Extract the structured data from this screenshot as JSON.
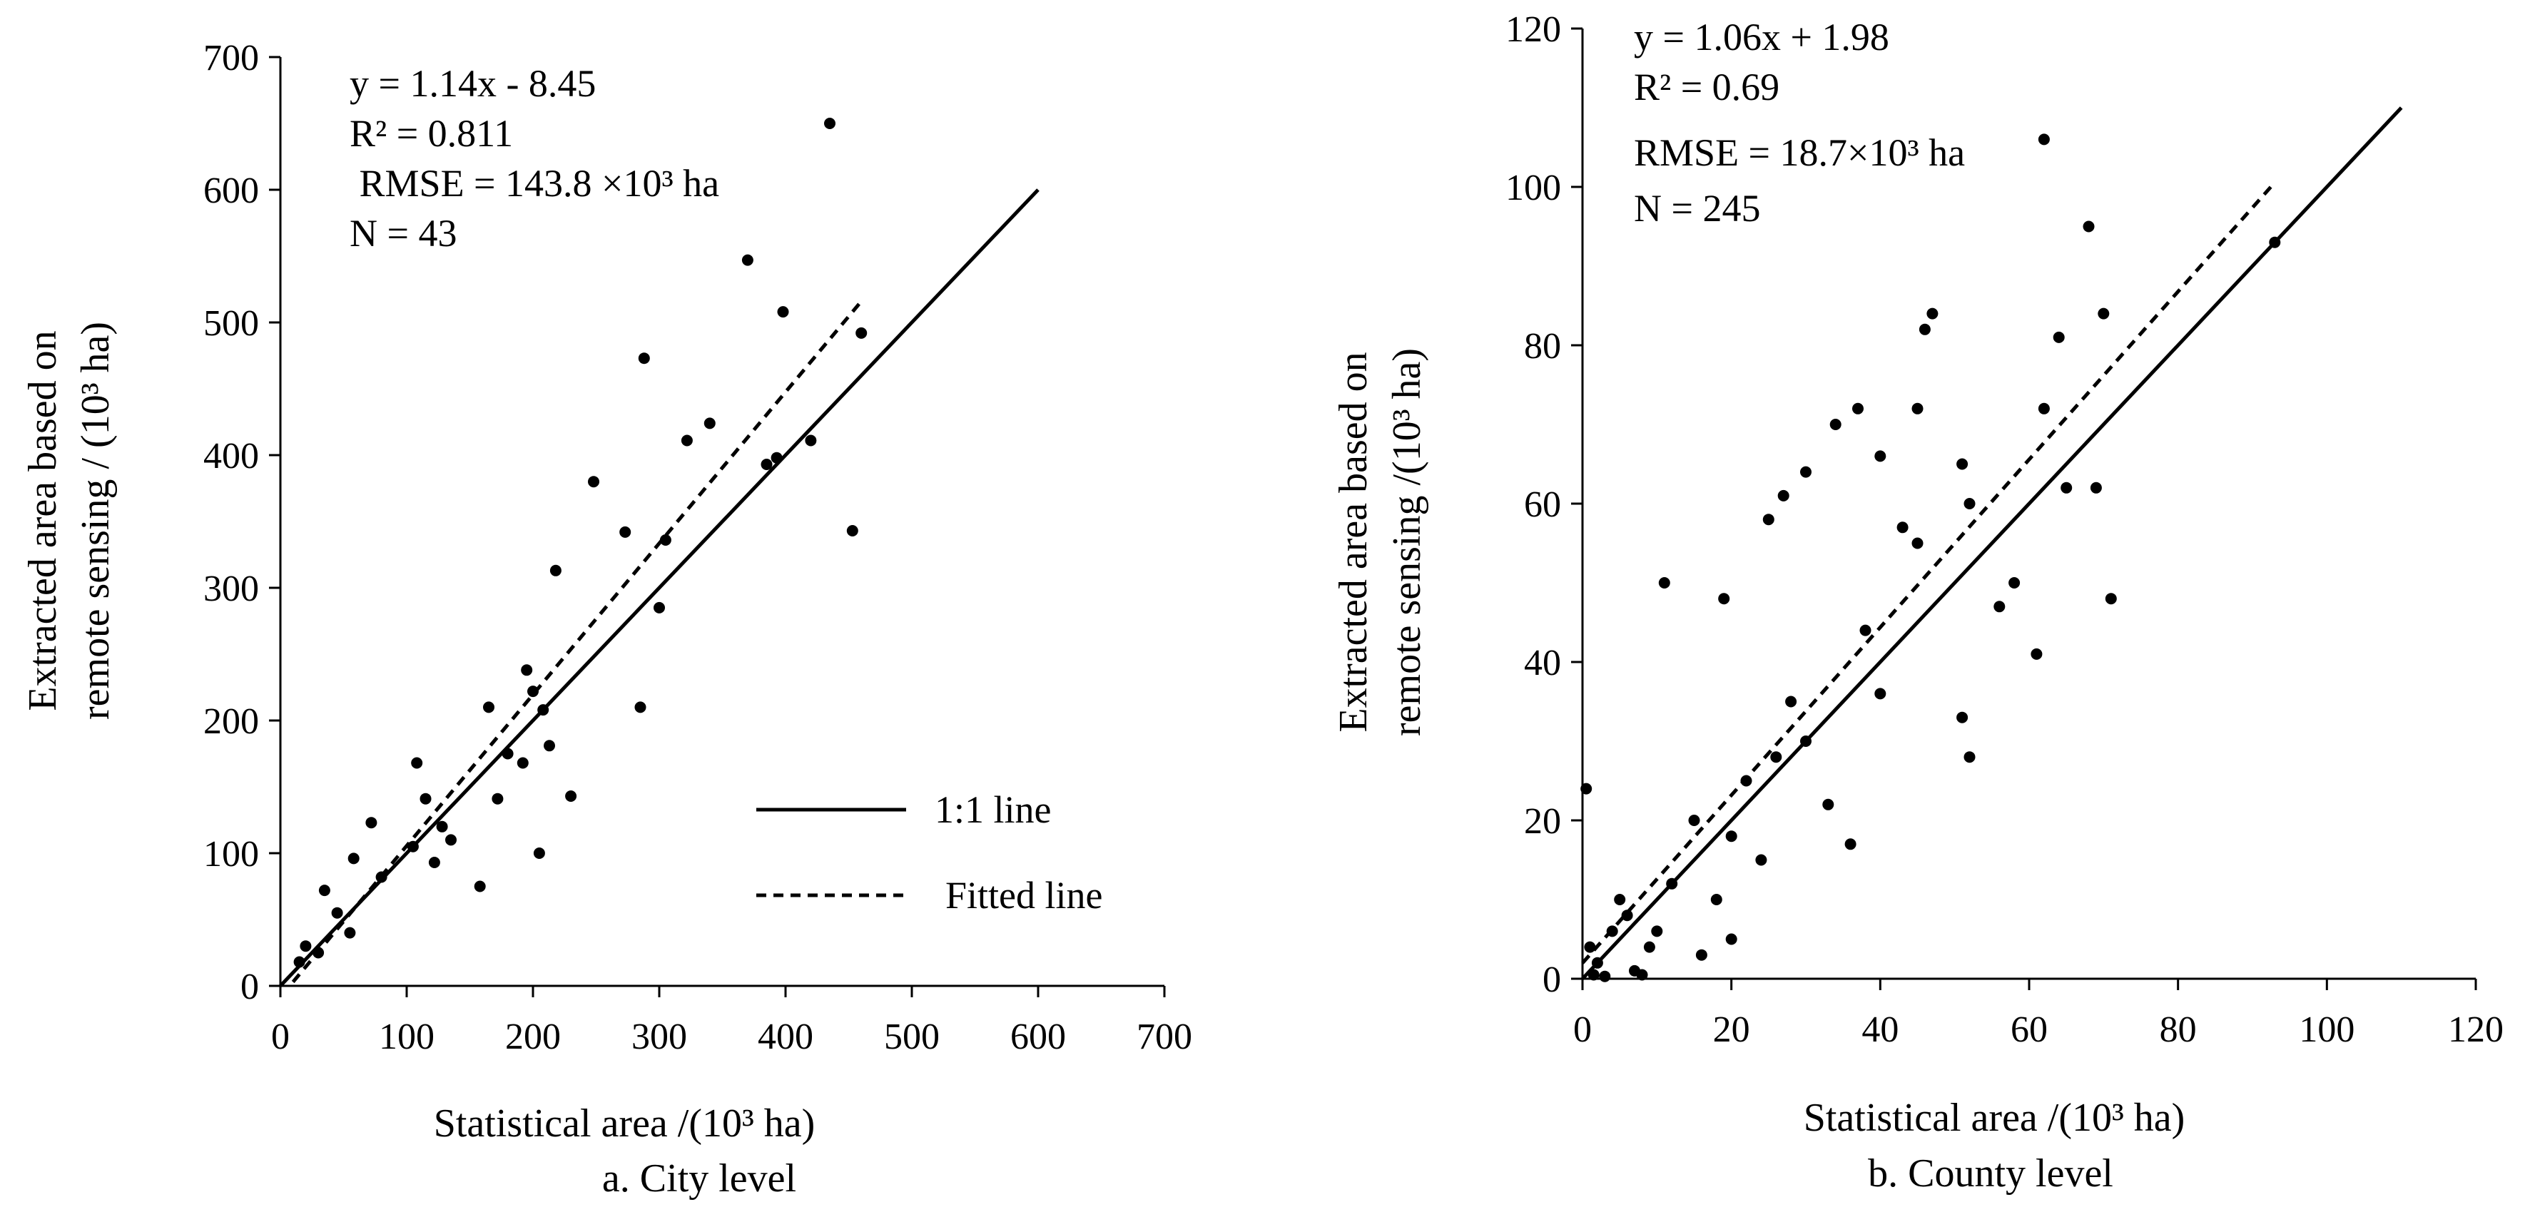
{
  "chart_data": [
    {
      "type": "scatter",
      "panel_label": "a. City level",
      "xlabel": "Statistical area /(10³ ha)",
      "ylabel_line1": "Extracted area based on",
      "ylabel_line2": "remote sensing / (10³ ha)",
      "xlim": [
        0,
        700
      ],
      "ylim": [
        0,
        700
      ],
      "xticks": [
        0,
        100,
        200,
        300,
        400,
        500,
        600,
        700
      ],
      "yticks": [
        0,
        100,
        200,
        300,
        400,
        500,
        600,
        700
      ],
      "annotations": [
        "y = 1.14x - 8.45",
        "R² = 0.811",
        " RMSE = 143.8 ×10³ ha",
        "N = 43"
      ],
      "legend": {
        "solid_label": "1:1 line",
        "dashed_label": "Fitted line"
      },
      "one_to_one": [
        [
          0,
          0
        ],
        [
          600,
          600
        ]
      ],
      "fitted_line": [
        [
          10,
          2.95
        ],
        [
          460,
          515.95
        ]
      ],
      "points": [
        [
          20,
          30
        ],
        [
          30,
          25
        ],
        [
          35,
          72
        ],
        [
          55,
          40
        ],
        [
          58,
          96
        ],
        [
          72,
          123
        ],
        [
          80,
          82
        ],
        [
          105,
          105
        ],
        [
          108,
          168
        ],
        [
          115,
          141
        ],
        [
          122,
          93
        ],
        [
          128,
          120
        ],
        [
          135,
          110
        ],
        [
          158,
          75
        ],
        [
          165,
          210
        ],
        [
          172,
          141
        ],
        [
          180,
          175
        ],
        [
          192,
          168
        ],
        [
          195,
          238
        ],
        [
          200,
          222
        ],
        [
          205,
          100
        ],
        [
          208,
          208
        ],
        [
          213,
          181
        ],
        [
          218,
          313
        ],
        [
          230,
          143
        ],
        [
          248,
          380
        ],
        [
          273,
          342
        ],
        [
          285,
          210
        ],
        [
          288,
          473
        ],
        [
          300,
          285
        ],
        [
          305,
          336
        ],
        [
          322,
          411
        ],
        [
          340,
          424
        ],
        [
          370,
          547
        ],
        [
          385,
          393
        ],
        [
          393,
          398
        ],
        [
          398,
          508
        ],
        [
          420,
          411
        ],
        [
          435,
          650
        ],
        [
          453,
          343
        ],
        [
          460,
          492
        ],
        [
          15,
          18
        ],
        [
          45,
          55
        ]
      ]
    },
    {
      "type": "scatter",
      "panel_label": "b. County level",
      "xlabel": "Statistical area /(10³ ha)",
      "ylabel_line1": "Extracted area based on",
      "ylabel_line2": "remote sensing /(10³ ha)",
      "xlim": [
        0,
        120
      ],
      "ylim": [
        0,
        120
      ],
      "xticks": [
        0,
        20,
        40,
        60,
        80,
        100,
        120
      ],
      "yticks": [
        0,
        20,
        40,
        60,
        80,
        100,
        120
      ],
      "annotations": [
        "y = 1.06x + 1.98",
        "R² = 0.69",
        "RMSE = 18.7×10³ ha",
        "N = 245"
      ],
      "one_to_one": [
        [
          0,
          0
        ],
        [
          110,
          110
        ]
      ],
      "fitted_line": [
        [
          0,
          1.98
        ],
        [
          92.5,
          100.03
        ]
      ],
      "points": [
        [
          0.5,
          24
        ],
        [
          1,
          4
        ],
        [
          1.5,
          0.5
        ],
        [
          2,
          2
        ],
        [
          3,
          0.3
        ],
        [
          4,
          6
        ],
        [
          5,
          10
        ],
        [
          6,
          8
        ],
        [
          7,
          1
        ],
        [
          8,
          0.5
        ],
        [
          9,
          4
        ],
        [
          10,
          6
        ],
        [
          11,
          50
        ],
        [
          12,
          12
        ],
        [
          15,
          20
        ],
        [
          16,
          3
        ],
        [
          18,
          10
        ],
        [
          19,
          48
        ],
        [
          20,
          5
        ],
        [
          25,
          58
        ],
        [
          27,
          61
        ],
        [
          30,
          64
        ],
        [
          34,
          70
        ],
        [
          37,
          72
        ],
        [
          40,
          66
        ],
        [
          45,
          72
        ],
        [
          46,
          82
        ],
        [
          47,
          84
        ],
        [
          51,
          65
        ],
        [
          52,
          60
        ],
        [
          56,
          47
        ],
        [
          58,
          50
        ],
        [
          61,
          41
        ],
        [
          62,
          72
        ],
        [
          62,
          106
        ],
        [
          64,
          81
        ],
        [
          65,
          62
        ],
        [
          68,
          95
        ],
        [
          69,
          62
        ],
        [
          70,
          84
        ],
        [
          71,
          48
        ],
        [
          93,
          93
        ],
        [
          51,
          33
        ],
        [
          52,
          28
        ],
        [
          45,
          55
        ],
        [
          43,
          57
        ],
        [
          40,
          36
        ],
        [
          38,
          44
        ],
        [
          36,
          17
        ],
        [
          33,
          22
        ],
        [
          30,
          30
        ],
        [
          28,
          35
        ],
        [
          26,
          28
        ],
        [
          24,
          15
        ],
        [
          22,
          25
        ],
        [
          20,
          18
        ]
      ]
    }
  ]
}
